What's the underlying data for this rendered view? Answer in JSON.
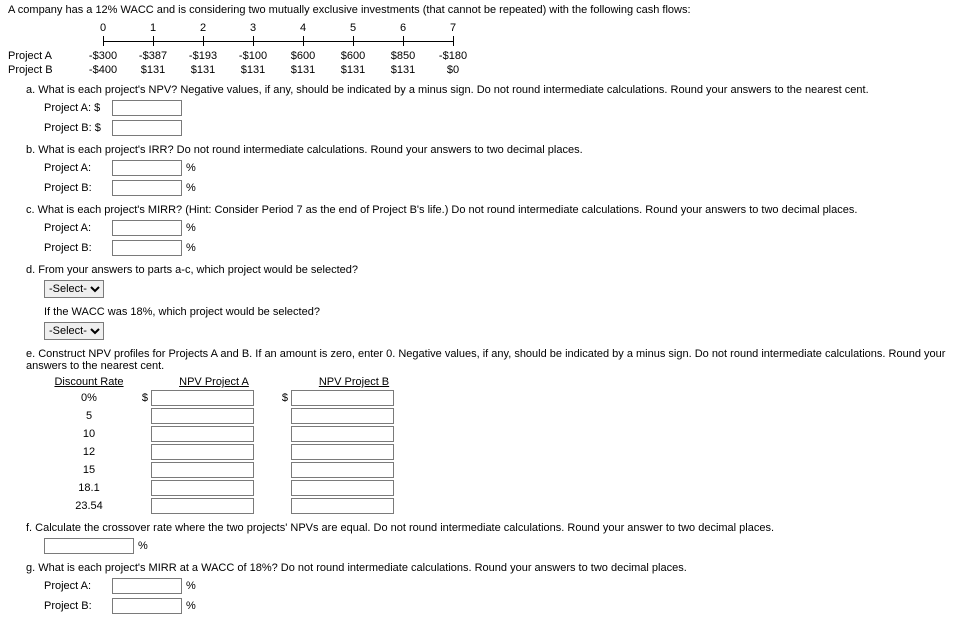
{
  "intro": "A company has a 12% WACC and is considering two mutually exclusive investments (that cannot be repeated) with the following cash flows:",
  "periods": [
    "0",
    "1",
    "2",
    "3",
    "4",
    "5",
    "6",
    "7"
  ],
  "projA": {
    "label": "Project A",
    "cf": [
      "-$300",
      "-$387",
      "-$193",
      "-$100",
      "$600",
      "$600",
      "$850",
      "-$180"
    ]
  },
  "projB": {
    "label": "Project B",
    "cf": [
      "-$400",
      "$131",
      "$131",
      "$131",
      "$131",
      "$131",
      "$131",
      "$0"
    ]
  },
  "qa": "a. What is each project's NPV? Negative values, if any, should be indicated by a minus sign. Do not round intermediate calculations. Round your answers to the nearest cent.",
  "qa_a": "Project A: $",
  "qa_b": "Project B: $",
  "qb": "b. What is each project's IRR? Do not round intermediate calculations. Round your answers to two decimal places.",
  "qb_a": "Project A:",
  "qb_b": "Project B:",
  "pct": "%",
  "qc": "c. What is each project's MIRR? (Hint: Consider Period 7 as the end of Project B's life.) Do not round intermediate calculations. Round your answers to two decimal places.",
  "qd": "d. From your answers to parts a-c, which project would be selected?",
  "select_placeholder": "-Select-",
  "qd2": "If the WACC was 18%, which project would be selected?",
  "qe": "e. Construct NPV profiles for Projects A and B. If an amount is zero, enter 0. Negative values, if any, should be indicated by a minus sign. Do not round intermediate calculations. Round your answers to the nearest cent.",
  "npv_head": {
    "rate": "Discount Rate",
    "a": "NPV Project A",
    "b": "NPV Project B"
  },
  "npv_rates": [
    "0%",
    "5",
    "10",
    "12",
    "15",
    "18.1",
    "23.54"
  ],
  "dollar": "$",
  "qf": "f. Calculate the crossover rate where the two projects' NPVs are equal. Do not round intermediate calculations. Round your answer to two decimal places.",
  "qg": "g. What is each project's MIRR at a WACC of 18%? Do not round intermediate calculations. Round your answers to two decimal places."
}
